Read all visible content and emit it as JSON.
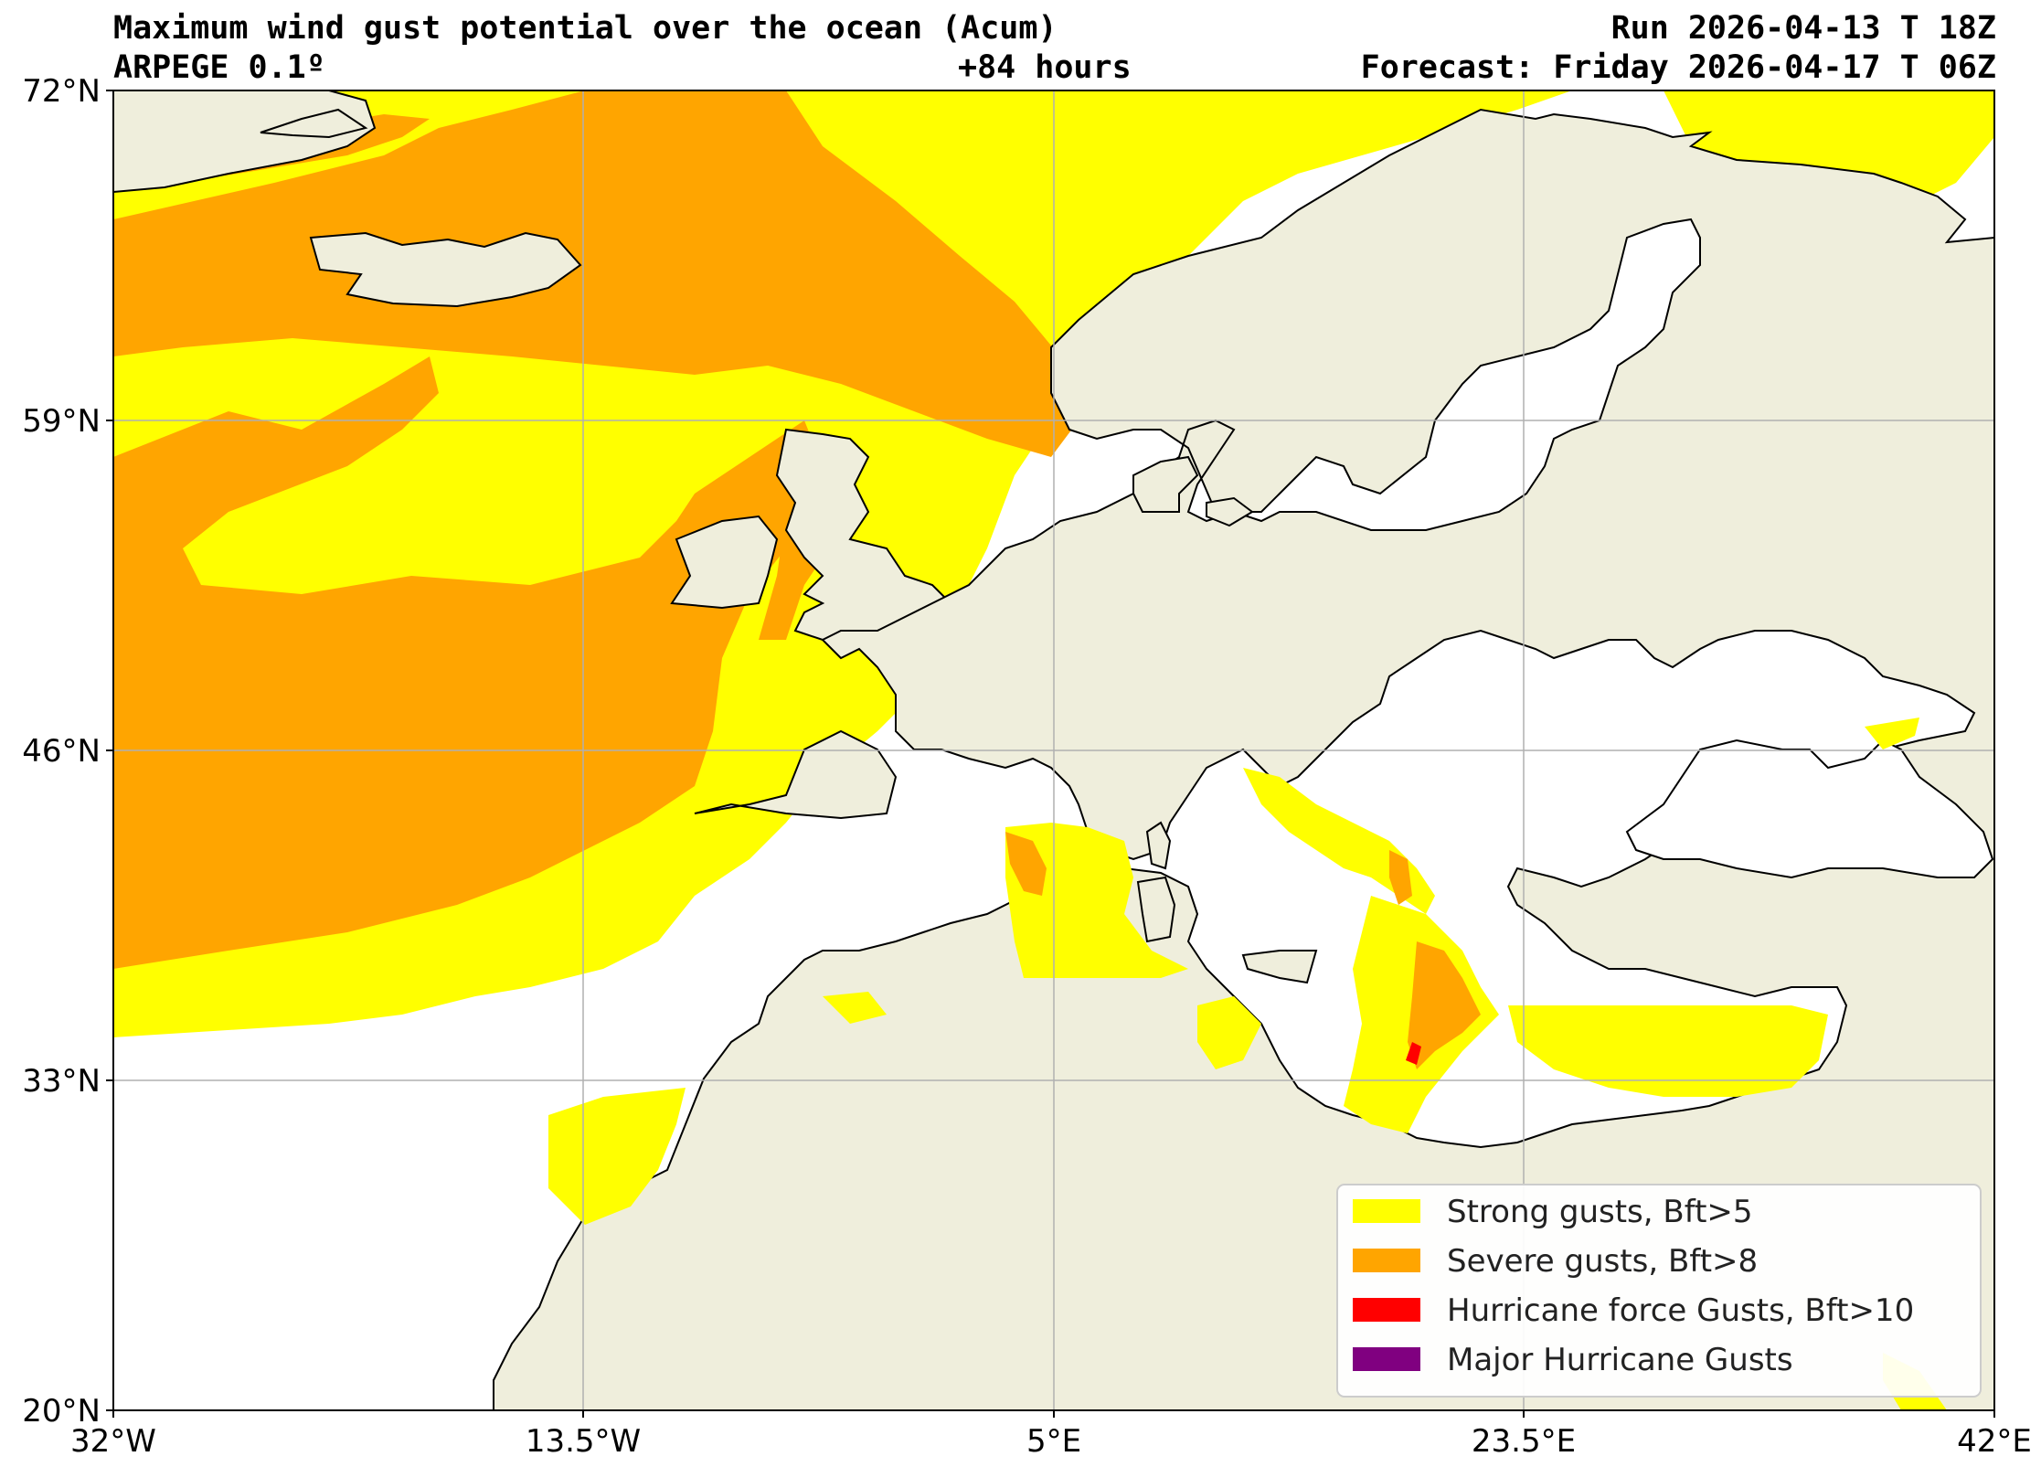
{
  "header": {
    "title": "Maximum wind gust potential over the ocean (Acum)",
    "model": "ARPEGE 0.1º",
    "lead": "+84 hours",
    "run": "Run 2026-04-13 T 18Z",
    "forecast": "Forecast: Friday 2026-04-17 T 06Z"
  },
  "axes": {
    "lat_ticks": [
      "72°N",
      "59°N",
      "46°N",
      "33°N",
      "20°N"
    ],
    "lon_ticks": [
      "32°W",
      "13.5°W",
      "5°E",
      "23.5°E",
      "42°E"
    ],
    "lat_range": [
      20,
      72
    ],
    "lon_range": [
      -32,
      42
    ],
    "grid": true
  },
  "legend": {
    "placement": "bottom-right",
    "items": [
      {
        "label": "Strong gusts, Bft>5",
        "color": "#ffff00"
      },
      {
        "label": "Severe gusts, Bft>8",
        "color": "#ffa500"
      },
      {
        "label": "Hurricane force Gusts, Bft>10",
        "color": "#ff0000"
      },
      {
        "label": "Major Hurricane Gusts",
        "color": "#800080"
      }
    ]
  },
  "colors": {
    "land": "#efeedc",
    "ocean": "#ffffff",
    "strong": "#ffff00",
    "severe": "#ffa500",
    "hurricane": "#ff0000",
    "grid": "#b0b0b0"
  }
}
